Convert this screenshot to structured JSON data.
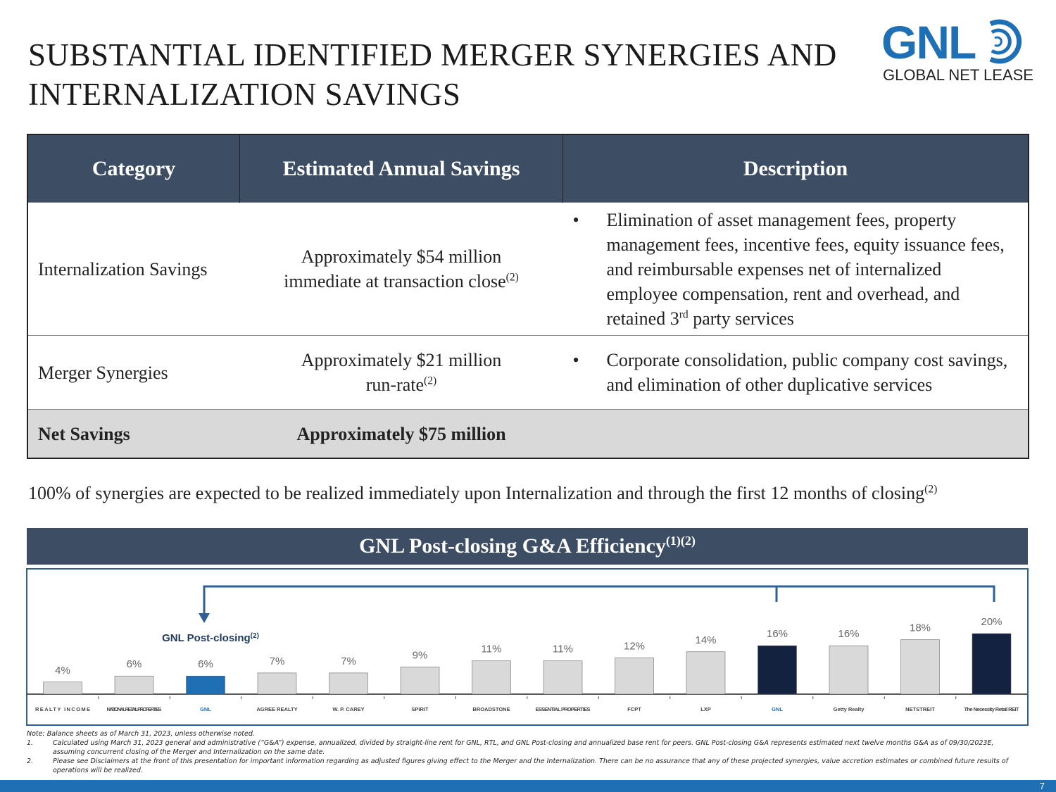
{
  "header": {
    "title": "SUBSTANTIAL IDENTIFIED MERGER SYNERGIES AND INTERNALIZATION SAVINGS",
    "logo_mark": "GNL",
    "logo_text": "GLOBAL NET LEASE"
  },
  "table": {
    "columns": [
      "Category",
      "Estimated Annual Savings",
      "Description"
    ],
    "rows": [
      {
        "category": "Internalization Savings",
        "savings": [
          "Approximately $54 million",
          "immediate at transaction close"
        ],
        "savings_note": "(2)",
        "description": [
          "Elimination of asset management fees, property management fees, incentive fees, equity issuance fees, and reimbursable expenses net of internalized employee compensation, rent and overhead, and retained 3",
          "rd",
          " party services"
        ]
      },
      {
        "category": "Merger Synergies",
        "savings": [
          "Approximately $21 million",
          "run-rate"
        ],
        "savings_note": "(2)",
        "description": [
          "Corporate consolidation, public company cost savings, and elimination of other duplicative services"
        ]
      },
      {
        "category": "Net Savings",
        "savings": [
          "Approximately $75 million"
        ]
      }
    ]
  },
  "statement": {
    "text": "100% of synergies are expected to be realized immediately upon Internalization and through the first 12 months of closing",
    "note": "(2)"
  },
  "chart_data": {
    "type": "bar",
    "title": "GNL Post-closing G&A Efficiency",
    "title_note": "(1)(2)",
    "annotation": "GNL Post-closing",
    "annotation_note": "(2)",
    "categories": [
      "REALTY INCOME",
      "NATIONAL RETAIL PROPERTIES",
      "GNL",
      "AGREE REALTY",
      "W. P. CAREY",
      "SPIRIT",
      "BROADSTONE",
      "ESSENTIAL PROPERTIES",
      "FCPT",
      "LXP",
      "GNL",
      "Getty Realty",
      "NETSTREIT",
      "The Necessity Retail REIT"
    ],
    "values": [
      4,
      6,
      6,
      7,
      7,
      9,
      11,
      11,
      12,
      14,
      16,
      16,
      18,
      20
    ],
    "value_labels": [
      "4%",
      "6%",
      "6%",
      "7%",
      "7%",
      "9%",
      "11%",
      "11%",
      "12%",
      "14%",
      "16%",
      "16%",
      "18%",
      "20%"
    ],
    "colors": [
      "#d9d9d9",
      "#d9d9d9",
      "#1f6fb5",
      "#d9d9d9",
      "#d9d9d9",
      "#d9d9d9",
      "#d9d9d9",
      "#d9d9d9",
      "#d9d9d9",
      "#d9d9d9",
      "#13233f",
      "#d9d9d9",
      "#d9d9d9",
      "#13233f"
    ]
  },
  "footnotes": {
    "note": "Note: Balance sheets as of March 31, 2023, unless otherwise noted.",
    "items": [
      {
        "marker": "1.",
        "text": "Calculated using March 31, 2023 general and administrative (“G&A”) expense, annualized, divided by straight-line rent for GNL, RTL, and GNL Post-closing and annualized base rent for peers. GNL Post-closing G&A represents estimated next twelve months G&A as of 09/30/2023E, assuming concurrent closing of the Merger and Internalization on the same date."
      },
      {
        "marker": "2.",
        "text": "Please see Disclaimers at the front of this presentation for important information regarding as adjusted figures giving effect to the Merger and the Internalization. There can be no assurance that any of these projected synergies, value accretion estimates or combined future results of operations will be realized."
      }
    ]
  },
  "page_number": 7
}
